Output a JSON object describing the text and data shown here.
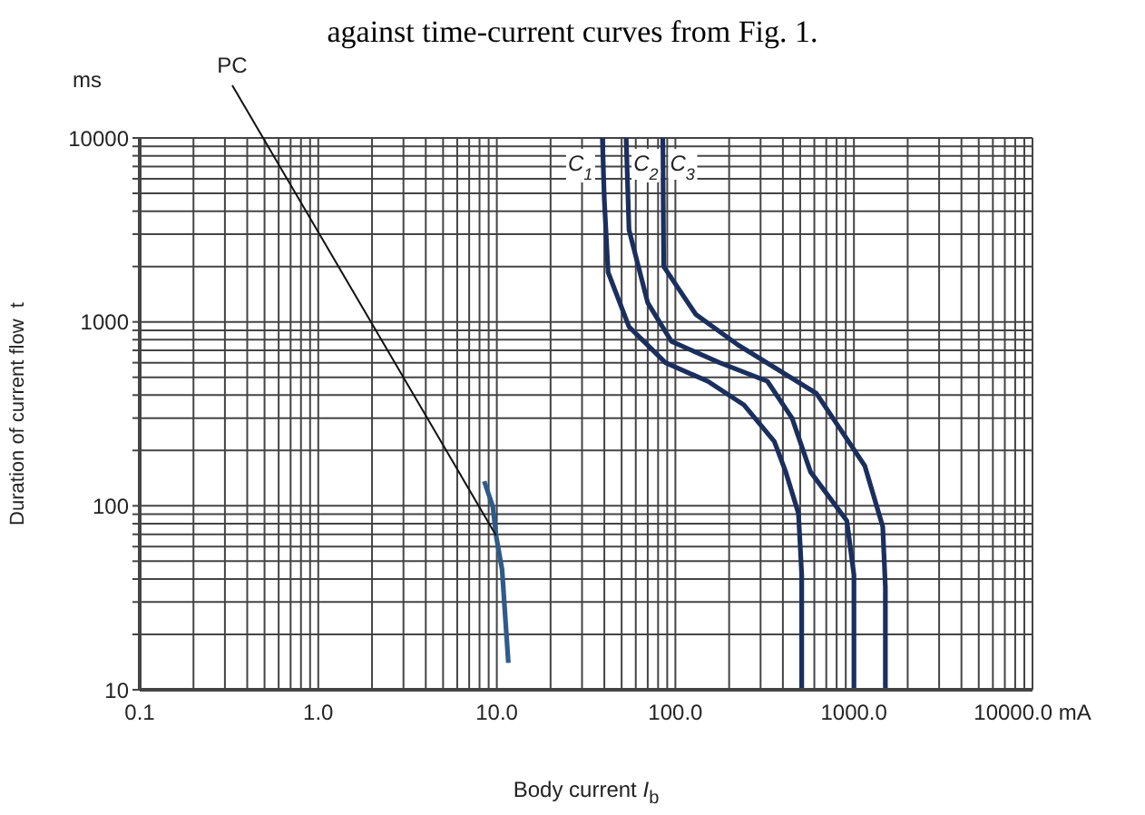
{
  "chart_data": {
    "type": "line",
    "title": "against time-current curves from Fig. 1.",
    "xlabel": "Body current I$_{b}$",
    "ylabel": "Duration of current flow  t",
    "log": "xy",
    "grid": true,
    "line_style": "solid",
    "xlim": [
      0.1,
      10000
    ],
    "ylim": [
      10,
      10000
    ],
    "xticks": [
      0.1,
      {
        "value": 0.2,
        "label": null
      },
      {
        "value": 0.3,
        "label": null
      },
      {
        "value": 0.4,
        "label": null
      },
      {
        "value": 0.5,
        "label": null
      },
      {
        "value": 0.6,
        "label": null
      },
      {
        "value": 0.7,
        "label": null
      },
      {
        "value": 0.8,
        "label": null
      },
      {
        "value": 0.9,
        "label": null
      },
      {
        "value": 1,
        "label": "1.0"
      },
      {
        "value": 2,
        "label": null
      },
      {
        "value": 3,
        "label": null
      },
      {
        "value": 4,
        "label": null
      },
      {
        "value": 5,
        "label": null
      },
      {
        "value": 6,
        "label": null
      },
      {
        "value": 7,
        "label": null
      },
      {
        "value": 8,
        "label": null
      },
      {
        "value": 9,
        "label": null
      },
      {
        "value": 10,
        "label": "10.0"
      },
      {
        "value": 20,
        "label": null
      },
      {
        "value": 30,
        "label": null
      },
      {
        "value": 40,
        "label": null
      },
      {
        "value": 50,
        "label": null
      },
      {
        "value": 60,
        "label": null
      },
      {
        "value": 70,
        "label": null
      },
      {
        "value": 80,
        "label": null
      },
      {
        "value": 90,
        "label": null
      },
      {
        "value": 100,
        "label": "100.0"
      },
      {
        "value": 200,
        "label": null
      },
      {
        "value": 300,
        "label": null
      },
      {
        "value": 400,
        "label": null
      },
      {
        "value": 500,
        "label": null
      },
      {
        "value": 600,
        "label": null
      },
      {
        "value": 700,
        "label": null
      },
      {
        "value": 800,
        "label": null
      },
      {
        "value": 900,
        "label": null
      },
      {
        "value": 1000,
        "label": "1000.0"
      },
      {
        "value": 2000,
        "label": null
      },
      {
        "value": 3000,
        "label": null
      },
      {
        "value": 4000,
        "label": null
      },
      {
        "value": 5000,
        "label": null
      },
      {
        "value": 6000,
        "label": null
      },
      {
        "value": 7000,
        "label": null
      },
      {
        "value": 8000,
        "label": null
      },
      {
        "value": 9000,
        "label": null
      },
      {
        "value": 10000,
        "label": "10000.0 mA"
      }
    ],
    "yticks": [
      10,
      {
        "value": 20,
        "label": null
      },
      {
        "value": 30,
        "label": null
      },
      {
        "value": 40,
        "label": null
      },
      {
        "value": 50,
        "label": null
      },
      {
        "value": 60,
        "label": null
      },
      {
        "value": 70,
        "label": null
      },
      {
        "value": 80,
        "label": null
      },
      {
        "value": 90,
        "label": null
      },
      100,
      {
        "value": 200,
        "label": null
      },
      {
        "value": 300,
        "label": null
      },
      {
        "value": 400,
        "label": null
      },
      {
        "value": 500,
        "label": null
      },
      {
        "value": 600,
        "label": null
      },
      {
        "value": 700,
        "label": null
      },
      {
        "value": 800,
        "label": null
      },
      {
        "value": 900,
        "label": null
      },
      1000,
      {
        "value": 2000,
        "label": null
      },
      {
        "value": 3000,
        "label": null
      },
      {
        "value": 4000,
        "label": null
      },
      {
        "value": 5000,
        "label": null
      },
      {
        "value": 6000,
        "label": null
      },
      {
        "value": 7000,
        "label": null
      },
      {
        "value": 8000,
        "label": null
      },
      {
        "value": 9000,
        "label": null
      },
      10000
    ],
    "annotations": [
      "ms",
      {
        "text": "PC",
        "x": 9.9,
        "y": 69
      }
    ],
    "series": [
      {
        "name": "C$_{1}$",
        "color": "#1b2f5e",
        "x": [
          39,
          40,
          42,
          55,
          88,
          152,
          242,
          358,
          415,
          489,
          510,
          510
        ],
        "values": [
          10000,
          4600,
          1860,
          940,
          600,
          475,
          354,
          224,
          153,
          91,
          42,
          10
        ]
      },
      {
        "name": "C$_{2}$",
        "color": "#1b2f5e",
        "x": [
          53,
          55,
          70,
          95,
          177,
          328,
          450,
          571,
          912,
          1000,
          1000
        ],
        "values": [
          10000,
          3160,
          1270,
          783,
          600,
          475,
          300,
          153,
          83,
          42,
          10
        ]
      },
      {
        "name": "C$_{3}$",
        "color": "#1b2f5e",
        "x": [
          85,
          86,
          130,
          224,
          617,
          1150,
          1450,
          1500,
          1500
        ],
        "values": [
          10000,
          2000,
          1100,
          750,
          408,
          165,
          77,
          36,
          10
        ]
      },
      {
        "color": "#2e5b8a",
        "x": [
          8.5,
          9.5,
          9.9,
          10.7,
          11.6
        ],
        "values": [
          136,
          99,
          69,
          45,
          14
        ]
      }
    ]
  }
}
